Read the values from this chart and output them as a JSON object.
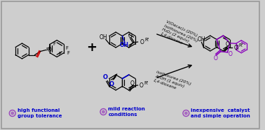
{
  "bg_color": "#cecece",
  "border_color": "#999999",
  "arrow_color": "#111111",
  "text_color_blue": "#0000cc",
  "text_color_dark": "#111111",
  "text_color_red": "#cc0000",
  "text_color_purple": "#8800bb",
  "bullet_color": "#9944bb",
  "condition1_lines": [
    "V(Oacac)₂ (20%)",
    "Isothiourea (20%)",
    "H₂O₂ (2 equiv)",
    "1,4-dioxane"
  ],
  "condition2_lines": [
    "isothiourea (20%)",
    "AcOH (1 equiv)",
    "1,4-dioxane"
  ],
  "label1": "high functional\ngroup tolerance",
  "label2": "mild reaction\nconditions",
  "label3": "inexpensive  catalyst\nand simple operation",
  "figsize": [
    3.78,
    1.86
  ],
  "dpi": 100
}
